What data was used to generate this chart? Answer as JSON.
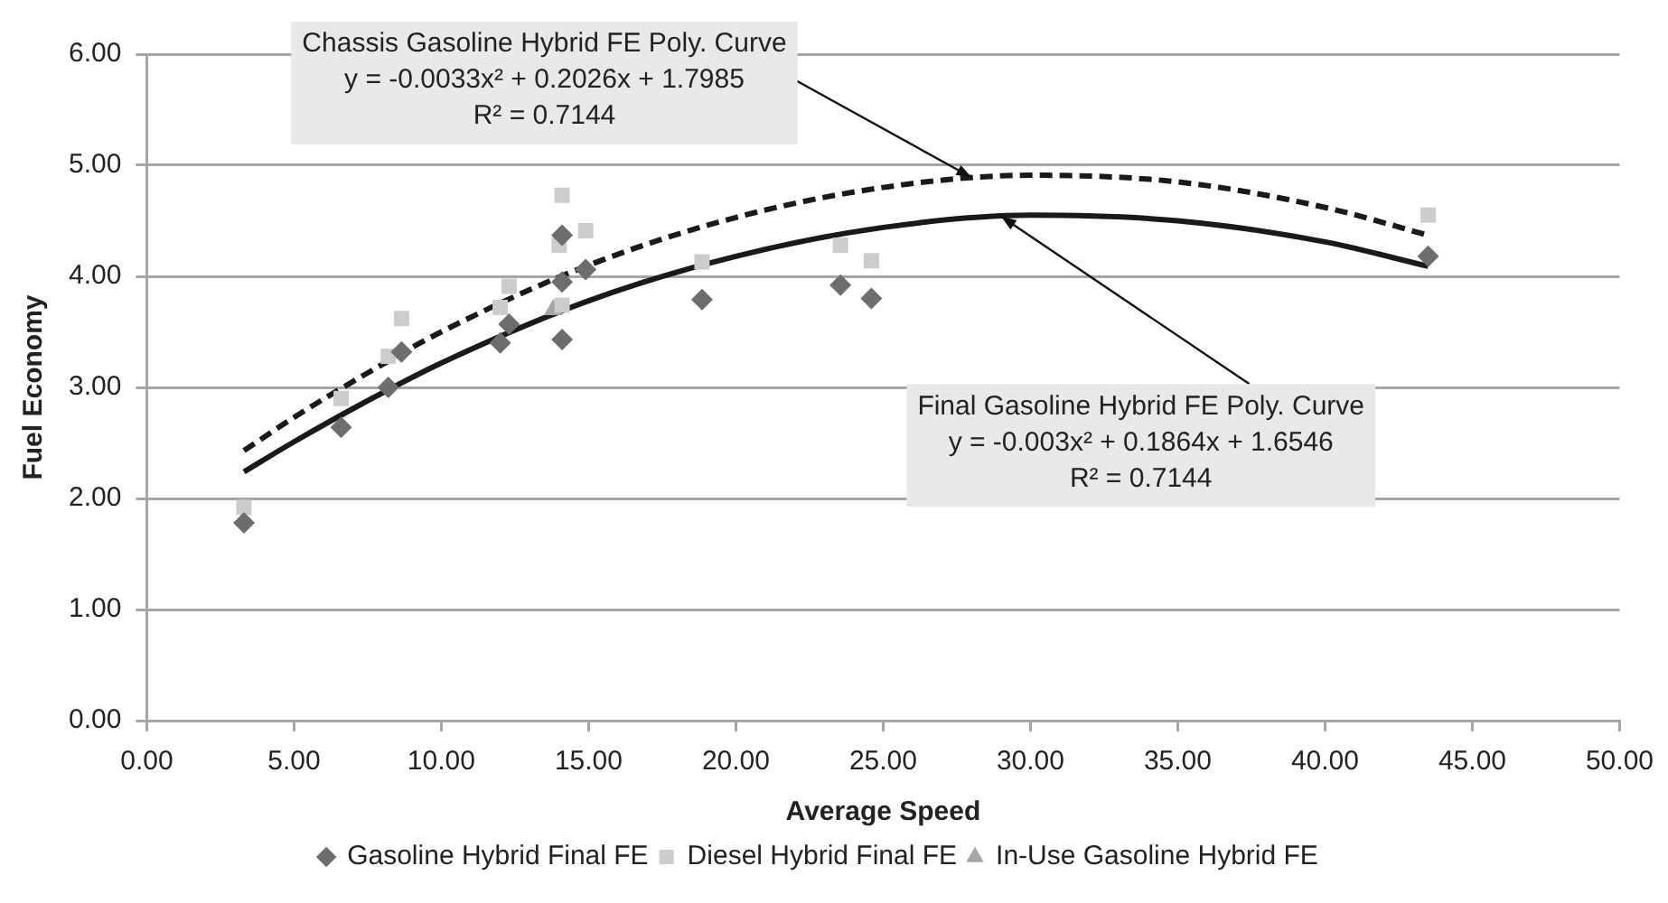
{
  "chart_data": {
    "type": "scatter",
    "xlabel": "Average Speed",
    "ylabel": "Fuel Economy",
    "xlim": [
      0,
      50
    ],
    "xticks": [
      {
        "value": 0,
        "label": "0.00"
      },
      {
        "value": 5,
        "label": "5.00"
      },
      {
        "value": 10,
        "label": "10.00"
      },
      {
        "value": 15,
        "label": "15.00"
      },
      {
        "value": 20,
        "label": "20.00"
      },
      {
        "value": 25,
        "label": "25.00"
      },
      {
        "value": 30,
        "label": "30.00"
      },
      {
        "value": 35,
        "label": "35.00"
      },
      {
        "value": 40,
        "label": "40.00"
      },
      {
        "value": 45,
        "label": "45.00"
      },
      {
        "value": 50,
        "label": "50.00"
      }
    ],
    "ylim": [
      0,
      6
    ],
    "yticks": [
      {
        "value": 0,
        "label": "0.00"
      },
      {
        "value": 1,
        "label": "1.00"
      },
      {
        "value": 2,
        "label": "2.00"
      },
      {
        "value": 3,
        "label": "3.00"
      },
      {
        "value": 4,
        "label": "4.00"
      },
      {
        "value": 5,
        "label": "5.00"
      },
      {
        "value": 6,
        "label": "6.00"
      }
    ],
    "grid": "y",
    "legend": "bottom",
    "series": [
      {
        "name": "Gasoline Hybrid Final FE",
        "color": "#6d6d6d",
        "marker": "diamond",
        "x": [
          3.3,
          6.6,
          8.2,
          8.65,
          12.0,
          12.3,
          14.1,
          14.1,
          14.1,
          14.9,
          18.85,
          23.55,
          24.6,
          43.5
        ],
        "values": [
          1.78,
          2.64,
          3.0,
          3.32,
          3.4,
          3.57,
          3.43,
          3.95,
          4.37,
          4.06,
          3.79,
          3.92,
          3.8,
          4.18
        ]
      },
      {
        "name": "Diesel Hybrid Final FE",
        "color": "#cccccc",
        "marker": "square",
        "x": [
          3.3,
          6.6,
          8.2,
          8.65,
          12.0,
          12.3,
          14.0,
          14.1,
          14.1,
          14.9,
          18.85,
          23.55,
          24.6,
          43.5
        ],
        "values": [
          1.92,
          2.9,
          3.28,
          3.62,
          3.72,
          3.91,
          4.28,
          4.73,
          3.74,
          4.41,
          4.13,
          4.28,
          4.14,
          4.55
        ]
      },
      {
        "name": "In-Use Gasoline Hybrid FE",
        "color": "#a6a6a6",
        "marker": "triangle",
        "x": [
          13.8
        ],
        "values": [
          3.7
        ]
      },
      {
        "type": "line",
        "color": "#1a1a1a",
        "line_style": "dashed",
        "x": [
          3.3,
          5,
          7.5,
          10,
          15,
          20,
          25,
          30,
          35,
          40,
          43.5
        ],
        "values": [
          2.43,
          2.73,
          3.13,
          3.5,
          4.1,
          4.53,
          4.8,
          4.91,
          4.85,
          4.62,
          4.37
        ]
      },
      {
        "type": "line",
        "color": "#1a1a1a",
        "line_style": "solid",
        "x": [
          3.3,
          5,
          7.5,
          10,
          15,
          20,
          25,
          30,
          35,
          40,
          43.5
        ],
        "values": [
          2.24,
          2.51,
          2.88,
          3.22,
          3.78,
          4.18,
          4.44,
          4.55,
          4.5,
          4.31,
          4.09
        ]
      }
    ],
    "annotations": [
      {
        "text": "Chassis Gasoline Hybrid FE Poly. Curve\ny = -0.0033x² + 0.2026x + 1.7985\nR² = 0.7144",
        "x": 28,
        "y": 4.89
      },
      {
        "text": "Final Gasoline Hybrid FE Poly. Curve\ny = -0.003x² + 0.1864x + 1.6546\nR² = 0.7144",
        "x": 29,
        "y": 4.54
      }
    ]
  }
}
